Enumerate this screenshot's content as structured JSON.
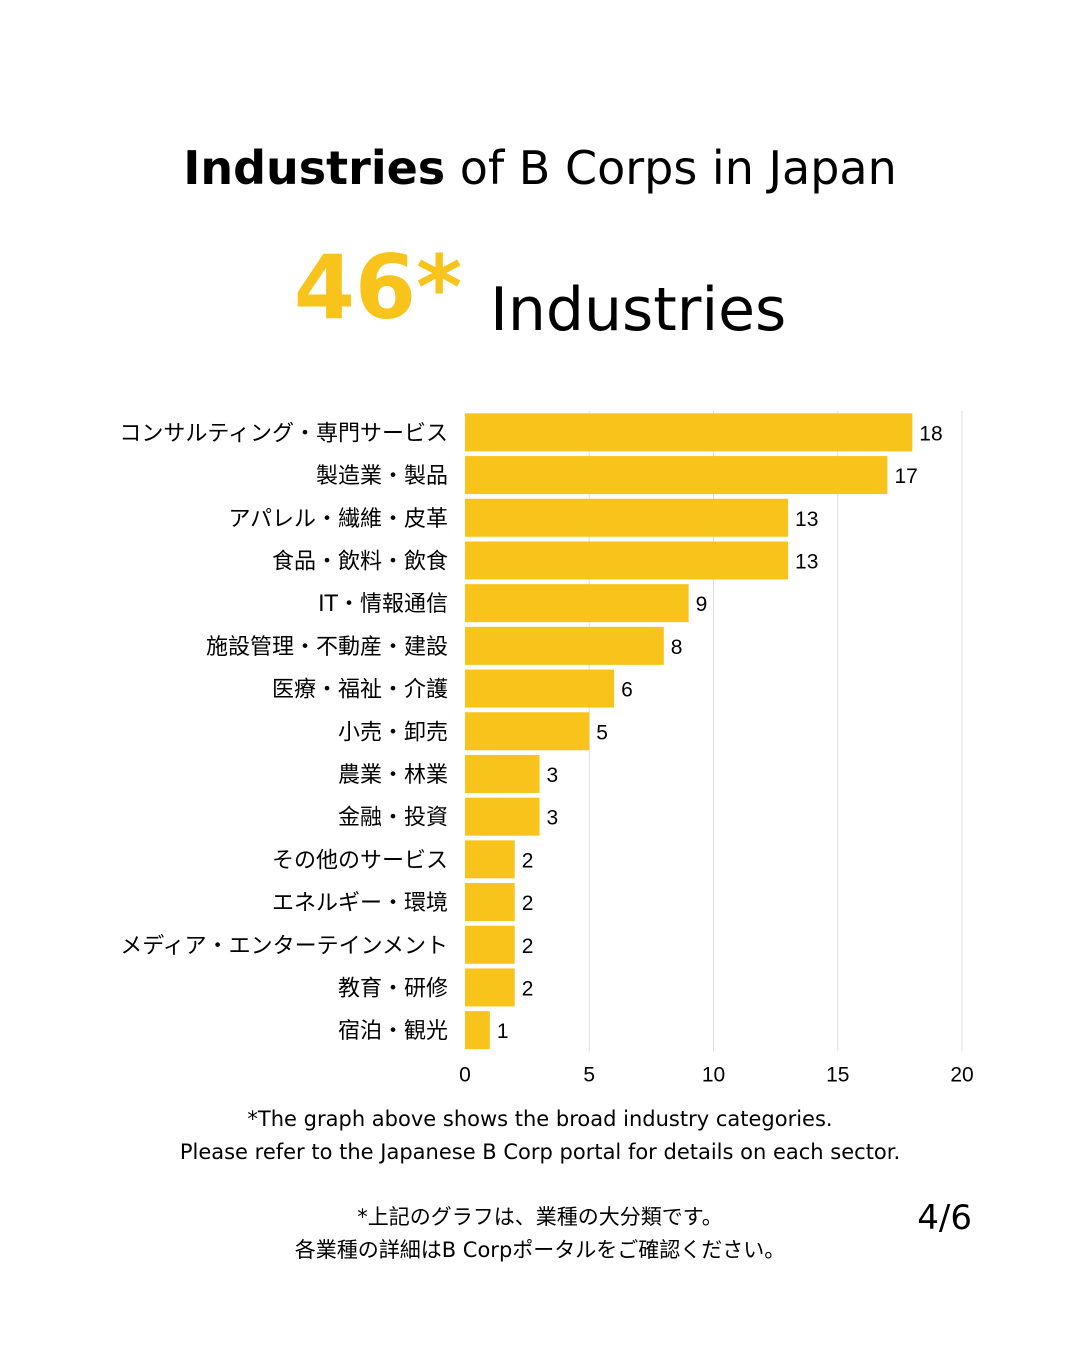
{
  "header": {
    "title_bold": "Industries",
    "title_rest": " of B Corps in Japan",
    "count": "46*",
    "count_label": "Industries"
  },
  "colors": {
    "bar": "#F8C31A",
    "grid": "#dddddd",
    "text": "#000000"
  },
  "chart_data": {
    "type": "bar",
    "orientation": "horizontal",
    "categories": [
      "コンサルティング・専門サービス",
      "製造業・製品",
      "アパレル・繊維・皮革",
      "食品・飲料・飲食",
      "IT・情報通信",
      "施設管理・不動産・建設",
      "医療・福祉・介護",
      "小売・卸売",
      "農業・林業",
      "金融・投資",
      "その他のサービス",
      "エネルギー・環境",
      "メディア・エンターテインメント",
      "教育・研修",
      "宿泊・観光"
    ],
    "values": [
      18,
      17,
      13,
      13,
      9,
      8,
      6,
      5,
      3,
      3,
      2,
      2,
      2,
      2,
      1
    ],
    "xlim": [
      0,
      20
    ],
    "xticks": [
      0,
      5,
      10,
      15,
      20
    ],
    "grid": true,
    "data_labels": true
  },
  "notes": {
    "en_line1": "*The graph above shows the broad industry categories.",
    "en_line2": "Please refer to the Japanese B Corp portal for details on each sector.",
    "ja_line1": "*上記のグラフは、業種の大分類です。",
    "ja_line2": "各業種の詳細はB Corpポータルをご確認ください。"
  },
  "page_indicator": "4/6"
}
